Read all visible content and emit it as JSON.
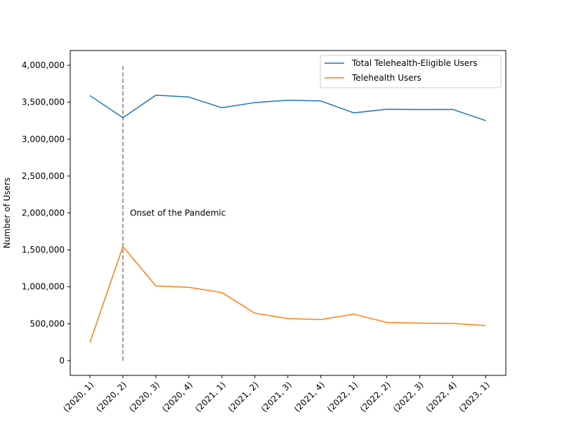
{
  "chart_data": {
    "type": "line",
    "title": "",
    "xlabel": "",
    "ylabel": "Number of Users",
    "categories": [
      "(2020, 1)",
      "(2020, 2)",
      "(2020, 3)",
      "(2020, 4)",
      "(2021, 1)",
      "(2021, 2)",
      "(2021, 3)",
      "(2021, 4)",
      "(2022, 1)",
      "(2022, 2)",
      "(2022, 3)",
      "(2022, 4)",
      "(2023, 1)"
    ],
    "ylim": [
      -200000,
      4200000
    ],
    "yticks": [
      0,
      500000,
      1000000,
      1500000,
      2000000,
      2500000,
      3000000,
      3500000,
      4000000
    ],
    "ytick_labels": [
      "0",
      "500,000",
      "1,000,000",
      "1,500,000",
      "2,000,000",
      "2,500,000",
      "3,000,000",
      "3,500,000",
      "4,000,000"
    ],
    "series": [
      {
        "name": "Total Telehealth-Eligible Users",
        "color": "#1f77b4",
        "values": [
          3590000,
          3290000,
          3595000,
          3570000,
          3425000,
          3495000,
          3527000,
          3517000,
          3355000,
          3405000,
          3400000,
          3402000,
          3250000
        ]
      },
      {
        "name": "Telehealth Users",
        "color": "#ff7f0e",
        "values": [
          245000,
          1545000,
          1012000,
          993000,
          922000,
          642000,
          570000,
          555000,
          630000,
          517000,
          508000,
          503000,
          475000
        ]
      }
    ],
    "vline": {
      "category": "(2020, 2)",
      "ymin": 0,
      "ymax": 4000000,
      "color": "#7f7f7f",
      "style": "dashed"
    },
    "annotation": {
      "text": "Onset of the Pandemic",
      "x_category": "(2020, 2)",
      "y": 2000000
    },
    "legend": "top-right",
    "grid": false
  }
}
